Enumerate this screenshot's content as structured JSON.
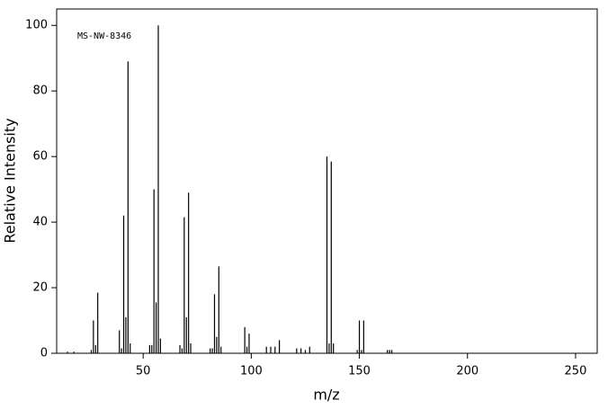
{
  "chart_data": {
    "type": "stem",
    "annotation": "MS-NW-8346",
    "x_label": "m/z",
    "y_label": "Relative Intensity",
    "x": [
      15,
      18,
      26,
      27,
      28,
      29,
      39,
      40,
      41,
      42,
      43,
      44,
      53,
      54,
      55,
      56,
      57,
      58,
      67,
      68,
      69,
      70,
      71,
      72,
      81,
      82,
      83,
      84,
      85,
      86,
      97,
      98,
      99,
      107,
      109,
      111,
      113,
      121,
      123,
      125,
      127,
      135,
      136,
      137,
      138,
      149,
      150,
      151,
      152,
      163,
      164,
      165
    ],
    "values": [
      0.5,
      0.5,
      1,
      10,
      2.5,
      18.5,
      7,
      1.5,
      42,
      11,
      89,
      3,
      2.5,
      2.5,
      50,
      15.5,
      100,
      4.5,
      2.5,
      1.5,
      41.5,
      11,
      49,
      3,
      1.5,
      1.5,
      18,
      5,
      26.5,
      2,
      8,
      2,
      6,
      2,
      2,
      2,
      4,
      1.5,
      1.5,
      1,
      2,
      60,
      3,
      58.5,
      3,
      1,
      10,
      1,
      10,
      1,
      1,
      1
    ],
    "color": "#000000",
    "xlim": [
      10,
      260
    ],
    "ylim": [
      0,
      105
    ],
    "xticks": [
      50,
      100,
      150,
      200,
      250
    ],
    "yticks": [
      0,
      20,
      40,
      60,
      80,
      100
    ]
  }
}
